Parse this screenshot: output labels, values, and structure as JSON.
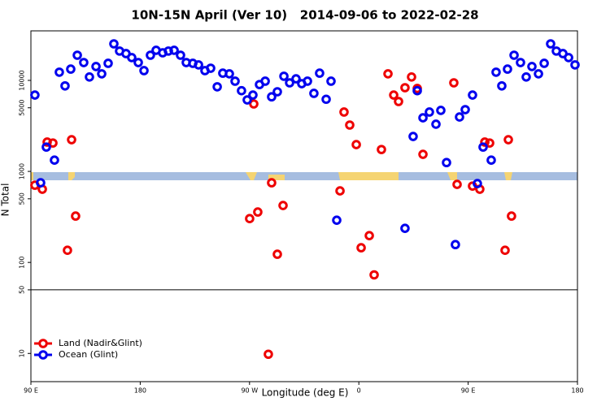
{
  "chart_data": {
    "type": "scatter",
    "title": "10N-15N April (Ver 10)   2014-09-06 to 2022-02-28",
    "x_label": "Longitude (deg E)",
    "y_label": "N Total",
    "log_y": true,
    "xlim": [
      90,
      540
    ],
    "xticks": [
      {
        "value": 90,
        "label": "90 E"
      },
      180,
      {
        "value": 270,
        "label": "90 W"
      },
      {
        "value": 360,
        "label": "0"
      },
      {
        "value": 450,
        "label": "90 E"
      },
      {
        "value": 540,
        "label": "180"
      }
    ],
    "ylim": [
      4.9,
      35000
    ],
    "yticks": [
      10,
      50,
      100,
      500,
      1000,
      5000,
      10000
    ],
    "reference_line": 50,
    "legend": "bottom-left",
    "series": [
      {
        "name": "Land (Nadir&Glint)",
        "color": "#ee0000",
        "x": [
          93.3,
          99.4,
          103.4,
          108.1,
          120.1,
          123.5,
          126.8,
          270.1,
          273.5,
          276.8,
          285.5,
          288.2,
          292.9,
          297.6,
          344.5,
          347.8,
          352.5,
          357.9,
          361.9,
          368.6,
          372.6,
          378.6,
          384,
          388.7,
          392.7,
          398,
          403.4,
          408.1,
          412.8,
          438.2,
          440.9,
          453.6,
          459.6,
          463.7,
          467.7,
          480.4,
          483.1,
          485.7
        ],
        "values": [
          705,
          637,
          2100,
          2050,
          136,
          2230,
          323,
          303,
          5510,
          358,
          9.8,
          750,
          123,
          422,
          611,
          4490,
          3230,
          1970,
          145,
          197,
          73,
          1740,
          11800,
          6900,
          5860,
          8310,
          10900,
          8150,
          1540,
          9400,
          720,
          690,
          637,
          2100,
          2050,
          136,
          2230,
          323
        ]
      },
      {
        "name": "Ocean (Glint)",
        "color": "#0000ee",
        "x": [
          93.3,
          98,
          102.7,
          109.4,
          113.4,
          118.1,
          122.8,
          128.2,
          133.5,
          138.2,
          143.6,
          148.3,
          153.6,
          158.3,
          163,
          168.3,
          173,
          178.4,
          183.1,
          188.4,
          193.1,
          198.5,
          203.2,
          207.9,
          213.2,
          217.9,
          223.3,
          228,
          233.3,
          238,
          243.4,
          248,
          253.4,
          258.1,
          263.4,
          268.1,
          272.8,
          278.2,
          282.9,
          288.2,
          292.9,
          298.3,
          303,
          308.3,
          313,
          317.7,
          323,
          327.7,
          333.1,
          337.1,
          341.8,
          398,
          404.7,
          408.1,
          412.8,
          418.1,
          423.5,
          427.5,
          432.2,
          439.5,
          442.9,
          447.6,
          453.6,
          457.6,
          462.3,
          469,
          473,
          477.7,
          482.4,
          487.8,
          493.1,
          497.8,
          502.5,
          507.9,
          512.6,
          517.9,
          522.6,
          528,
          532.7,
          538
        ],
        "values": [
          6900,
          750,
          1850,
          1330,
          12300,
          8700,
          13300,
          18900,
          15700,
          10900,
          14200,
          11800,
          15400,
          25200,
          21000,
          19700,
          17800,
          15700,
          12800,
          18900,
          21400,
          20100,
          21000,
          21400,
          18900,
          15700,
          15400,
          14800,
          12800,
          13600,
          8500,
          12000,
          11800,
          9800,
          7700,
          6100,
          6900,
          9000,
          9800,
          6600,
          7500,
          11100,
          9400,
          10400,
          9200,
          9800,
          7200,
          12000,
          6200,
          9800,
          291,
          237,
          2420,
          7700,
          3880,
          4490,
          3300,
          4680,
          1250,
          157,
          3960,
          4770,
          6900,
          735,
          1850,
          1330,
          12300,
          8700,
          13300,
          18900,
          15700,
          10900,
          14200,
          11800,
          15400,
          25200,
          21000,
          19700,
          17800,
          14800
        ]
      }
    ]
  }
}
